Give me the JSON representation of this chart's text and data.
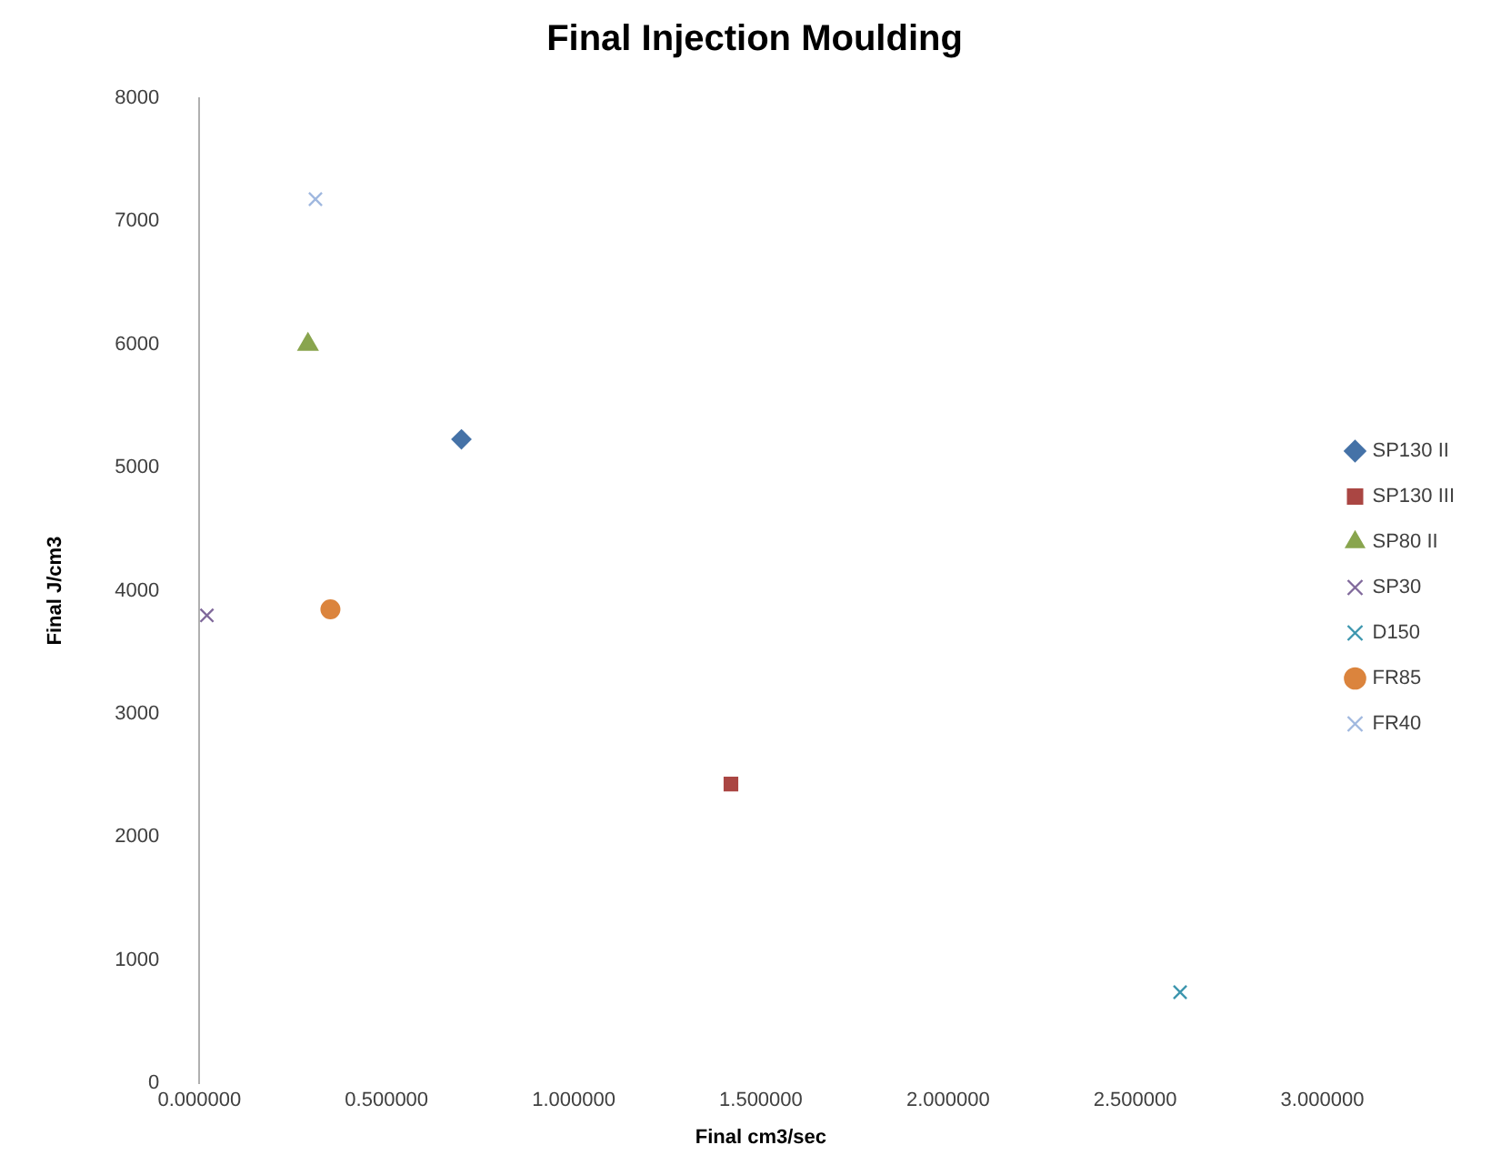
{
  "chart_data": {
    "type": "scatter",
    "title": "Final Injection Moulding",
    "xlabel": "Final cm3/sec",
    "ylabel": "Final J/cm3",
    "xlim": [
      0,
      3
    ],
    "xticks": [
      {
        "value": 0,
        "label": "0.000000"
      },
      {
        "value": 0.5,
        "label": "0.500000"
      },
      {
        "value": 1,
        "label": "1.000000"
      },
      {
        "value": 1.5,
        "label": "1.500000"
      },
      {
        "value": 2,
        "label": "2.000000"
      },
      {
        "value": 2.5,
        "label": "2.500000"
      },
      {
        "value": 3,
        "label": "3.000000"
      }
    ],
    "ylim": [
      0,
      8000
    ],
    "yticks": [
      0,
      1000,
      2000,
      3000,
      4000,
      5000,
      6000,
      7000,
      8000
    ],
    "grid": false,
    "legend": "right",
    "series": [
      {
        "name": "SP130 II",
        "color": "#4572a7",
        "marker": "diamond",
        "x": [
          0.7
        ],
        "values": [
          5230
        ]
      },
      {
        "name": "SP130 III",
        "color": "#aa4643",
        "marker": "square",
        "x": [
          1.42
        ],
        "values": [
          2430
        ]
      },
      {
        "name": "SP80 II",
        "color": "#89a54e",
        "marker": "triangle",
        "x": [
          0.29
        ],
        "values": [
          6000
        ]
      },
      {
        "name": "SP30",
        "color": "#80699b",
        "marker": "cross",
        "x": [
          0.02
        ],
        "values": [
          3800
        ]
      },
      {
        "name": "D150",
        "color": "#3d96ae",
        "marker": "cross",
        "x": [
          2.62
        ],
        "values": [
          740
        ]
      },
      {
        "name": "FR85",
        "color": "#db843d",
        "marker": "circle",
        "x": [
          0.35
        ],
        "values": [
          3850
        ]
      },
      {
        "name": "FR40",
        "color": "#a0b8df",
        "marker": "cross",
        "x": [
          0.31
        ],
        "values": [
          7180
        ]
      }
    ]
  }
}
